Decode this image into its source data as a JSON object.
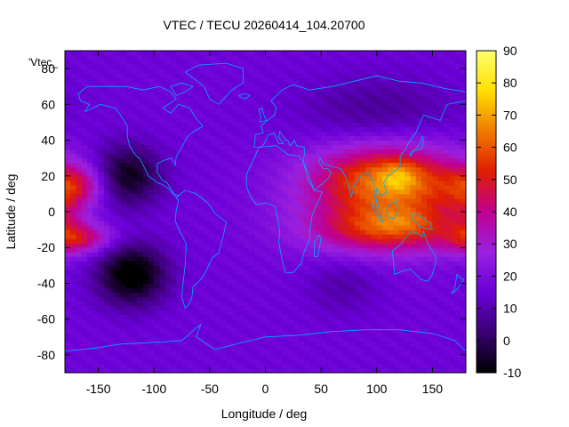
{
  "chart_data": {
    "type": "heatmap",
    "title": "VTEC / TECU 20260414_104.20700",
    "xlabel": "Longitude / deg",
    "ylabel": "Latitude / deg",
    "xlim": [
      -180,
      180
    ],
    "ylim": [
      -90,
      90
    ],
    "x_ticks": [
      -150,
      -100,
      -50,
      0,
      50,
      100,
      150
    ],
    "y_ticks": [
      -80,
      -60,
      -40,
      -20,
      0,
      20,
      40,
      60,
      80
    ],
    "colorbar": {
      "min": -10,
      "max": 90,
      "ticks": [
        -10,
        0,
        10,
        20,
        30,
        40,
        50,
        60,
        70,
        80,
        90
      ]
    },
    "legend_label": "'Vtec_",
    "grid": false,
    "colors": {
      "coastline": "#00aaff",
      "axis": "#000000",
      "cb_stops": [
        "#000000",
        "#3a0072",
        "#6a00d8",
        "#9a20e0",
        "#c00090",
        "#e01e00",
        "#f07a00",
        "#ffe000",
        "#ffff70"
      ]
    },
    "features": [
      {
        "lon": 110,
        "lat": 18,
        "sx": 45,
        "sy": 14,
        "value": 55
      },
      {
        "lon": 110,
        "lat": -10,
        "sx": 45,
        "sy": 9,
        "value": 45
      },
      {
        "lon": 90,
        "lat": 5,
        "sx": 55,
        "sy": 22,
        "value": 28
      },
      {
        "lon": 155,
        "lat": 8,
        "sx": 30,
        "sy": 15,
        "value": 22
      },
      {
        "lon": 120,
        "lat": 20,
        "sx": 12,
        "sy": 6,
        "value": 28
      },
      {
        "lon": 125,
        "lat": -5,
        "sx": 20,
        "sy": 5,
        "value": 22
      },
      {
        "lon": -170,
        "lat": 15,
        "sx": 20,
        "sy": 8,
        "value": 40
      },
      {
        "lon": -170,
        "lat": -15,
        "sx": 20,
        "sy": 6,
        "value": 42
      },
      {
        "lon": -145,
        "lat": -14,
        "sx": 18,
        "sy": 4,
        "value": 18
      },
      {
        "lon": -180,
        "lat": 0,
        "sx": 10,
        "sy": 12,
        "value": 25
      },
      {
        "lon": -120,
        "lat": -35,
        "sx": 22,
        "sy": 12,
        "value": -14
      },
      {
        "lon": -125,
        "lat": 20,
        "sx": 22,
        "sy": 12,
        "value": -9
      },
      {
        "lon": 70,
        "lat": -40,
        "sx": 25,
        "sy": 12,
        "value": 8
      },
      {
        "lon": 100,
        "lat": 55,
        "sx": 50,
        "sy": 15,
        "value": 6
      }
    ],
    "baseline": 16
  }
}
